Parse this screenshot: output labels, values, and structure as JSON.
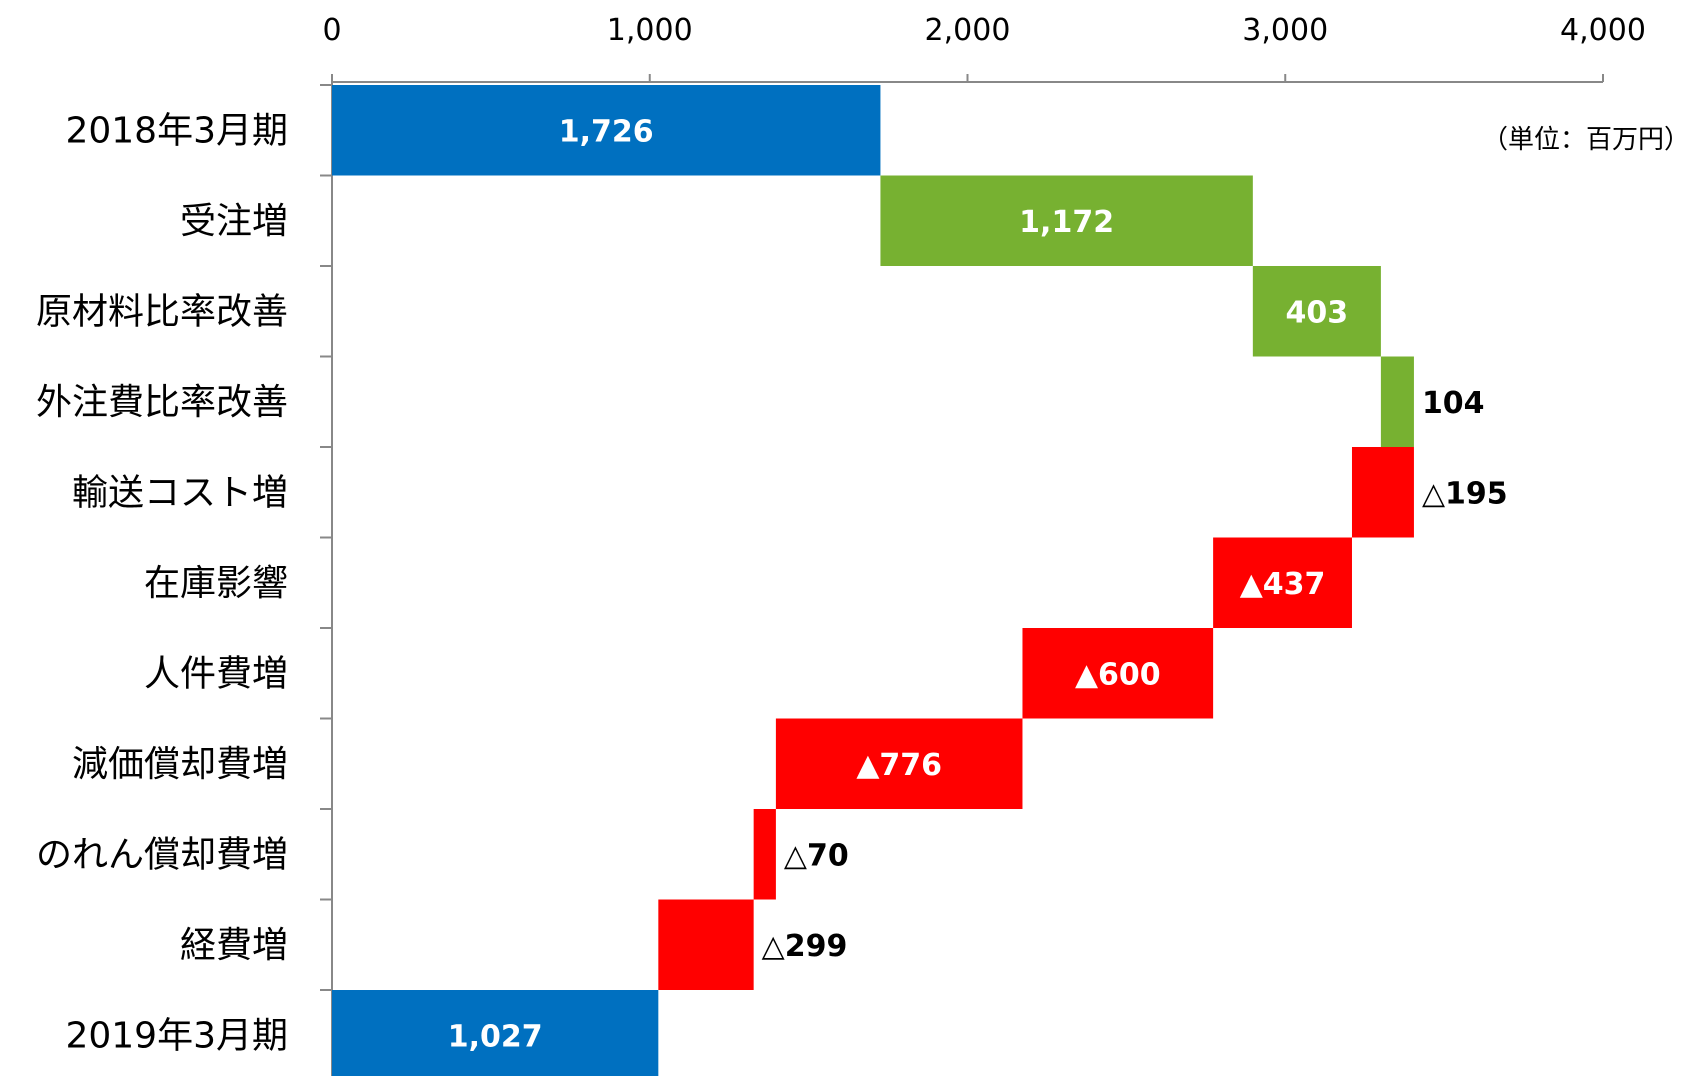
{
  "chart_data": {
    "type": "bar",
    "subtype": "waterfall",
    "orientation": "horizontal",
    "unit_note": "（単位：百万円）",
    "xlim": [
      0,
      4000
    ],
    "x_ticks": [
      "0",
      "1,000",
      "2,000",
      "3,000",
      "4,000"
    ],
    "x_tick_values": [
      0,
      1000,
      2000,
      3000,
      4000
    ],
    "x_axis_position": "top",
    "grid": false,
    "colors": {
      "total": "#0070C0",
      "increase": "#77B131",
      "decrease": "#FF0000"
    },
    "categories": [
      "2018年3月期",
      "受注増",
      "原材料比率改善",
      "外注費比率改善",
      "輸送コスト増",
      "在庫影響",
      "人件費増",
      "減価償却費増",
      "のれん償却費増",
      "経費増",
      "2019年3月期"
    ],
    "bars": [
      {
        "category": "2018年3月期",
        "kind": "total",
        "start": 0,
        "end": 1726,
        "label": "1,726",
        "label_pos": "inside"
      },
      {
        "category": "受注増",
        "kind": "increase",
        "start": 1726,
        "end": 2898,
        "label": "1,172",
        "label_pos": "inside"
      },
      {
        "category": "原材料比率改善",
        "kind": "increase",
        "start": 2898,
        "end": 3301,
        "label": "403",
        "label_pos": "inside"
      },
      {
        "category": "外注費比率改善",
        "kind": "increase",
        "start": 3301,
        "end": 3405,
        "label": "104",
        "label_pos": "outside"
      },
      {
        "category": "輸送コスト増",
        "kind": "decrease",
        "start": 3405,
        "end": 3210,
        "label": "△195",
        "label_pos": "outside"
      },
      {
        "category": "在庫影響",
        "kind": "decrease",
        "start": 3210,
        "end": 2773,
        "label": "▲437",
        "label_pos": "inside"
      },
      {
        "category": "人件費増",
        "kind": "decrease",
        "start": 2773,
        "end": 2173,
        "label": "▲600",
        "label_pos": "inside"
      },
      {
        "category": "減価償却費増",
        "kind": "decrease",
        "start": 2173,
        "end": 1397,
        "label": "▲776",
        "label_pos": "inside"
      },
      {
        "category": "のれん償却費増",
        "kind": "decrease",
        "start": 1397,
        "end": 1327,
        "label": "△70",
        "label_pos": "outside"
      },
      {
        "category": "経費増",
        "kind": "decrease",
        "start": 1327,
        "end": 1027,
        "label": "△299",
        "label_pos": "outside"
      },
      {
        "category": "2019年3月期",
        "kind": "total",
        "start": 0,
        "end": 1027,
        "label": "1,027",
        "label_pos": "inside"
      }
    ]
  }
}
